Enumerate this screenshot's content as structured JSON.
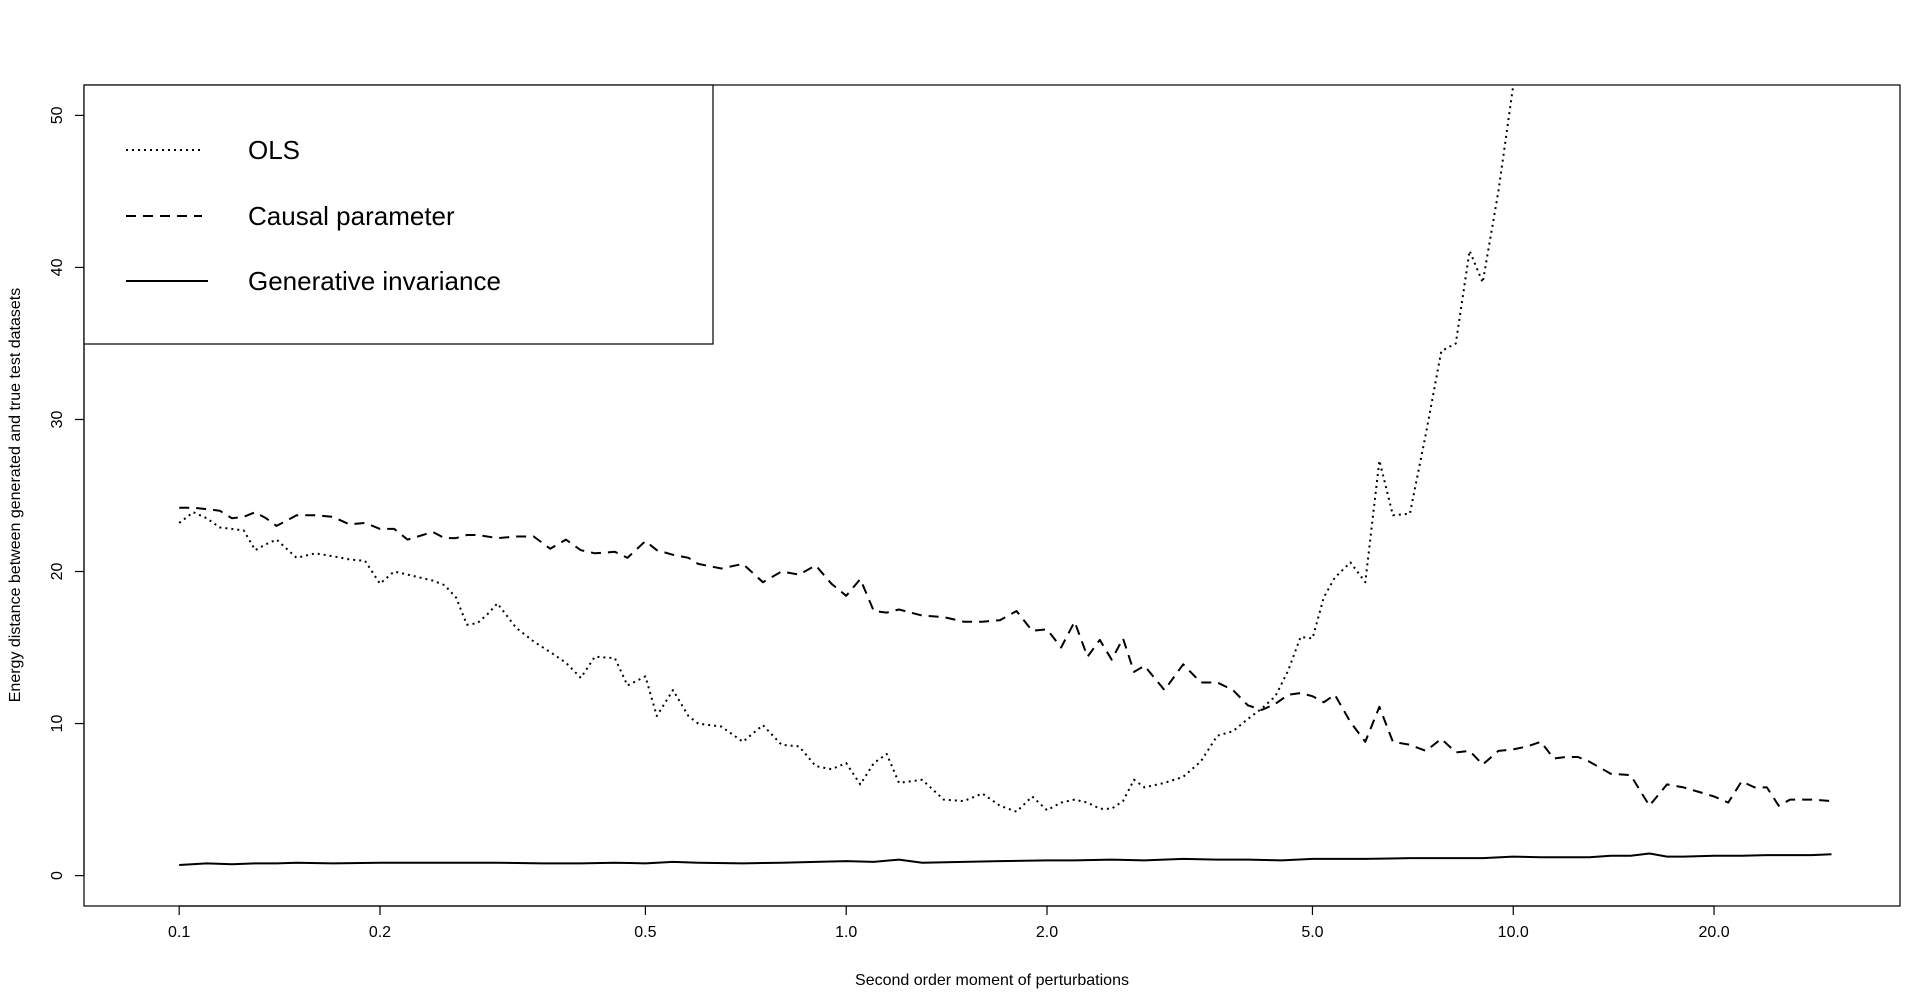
{
  "chart_data": {
    "type": "line",
    "title": "",
    "xlabel": "Second order moment of perturbations",
    "ylabel": "Energy distance between generated and true test datasets",
    "x_scale": "log",
    "xlim": [
      0.072,
      38
    ],
    "ylim": [
      -2,
      52
    ],
    "x_ticks": [
      0.1,
      0.2,
      0.5,
      1.0,
      2.0,
      5.0,
      10.0,
      20.0
    ],
    "x_tick_labels": [
      "0.1",
      "0.2",
      "0.5",
      "1.0",
      "2.0",
      "5.0",
      "10.0",
      "20.0"
    ],
    "y_ticks": [
      0,
      10,
      20,
      30,
      40,
      50
    ],
    "y_tick_labels": [
      "0",
      "10",
      "20",
      "30",
      "40",
      "50"
    ],
    "grid": false,
    "legend_position": "top-left",
    "legend": [
      {
        "label": "OLS",
        "style": "dotted"
      },
      {
        "label": "Causal parameter",
        "style": "dashed"
      },
      {
        "label": "Generative invariance",
        "style": "solid"
      }
    ],
    "series": [
      {
        "name": "OLS",
        "style": "dotted",
        "x": [
          0.1,
          0.105,
          0.11,
          0.115,
          0.12,
          0.125,
          0.13,
          0.135,
          0.14,
          0.15,
          0.16,
          0.17,
          0.18,
          0.19,
          0.2,
          0.21,
          0.22,
          0.24,
          0.25,
          0.26,
          0.27,
          0.28,
          0.29,
          0.3,
          0.32,
          0.34,
          0.36,
          0.38,
          0.4,
          0.42,
          0.45,
          0.47,
          0.5,
          0.52,
          0.55,
          0.58,
          0.6,
          0.65,
          0.7,
          0.75,
          0.8,
          0.85,
          0.9,
          0.95,
          1.0,
          1.05,
          1.1,
          1.15,
          1.2,
          1.3,
          1.4,
          1.5,
          1.6,
          1.7,
          1.8,
          1.9,
          2.0,
          2.1,
          2.2,
          2.3,
          2.4,
          2.5,
          2.6,
          2.7,
          2.8,
          3.0,
          3.2,
          3.4,
          3.6,
          3.8,
          4.0,
          4.2,
          4.4,
          4.6,
          4.8,
          5.0,
          5.2,
          5.4,
          5.7,
          6.0,
          6.3,
          6.6,
          7.0,
          7.4,
          7.8,
          8.2,
          8.6,
          9.0,
          9.5,
          10.0,
          10.4
        ],
        "values": [
          23.2,
          23.9,
          23.5,
          22.9,
          22.8,
          22.7,
          21.4,
          21.8,
          22.1,
          20.9,
          21.2,
          21.0,
          20.8,
          20.7,
          19.2,
          20.0,
          19.8,
          19.4,
          19.1,
          18.3,
          16.5,
          16.6,
          17.2,
          17.9,
          16.3,
          15.4,
          14.7,
          14.0,
          13.0,
          14.4,
          14.3,
          12.5,
          13.1,
          10.5,
          12.2,
          10.5,
          10.0,
          9.8,
          8.8,
          9.9,
          8.6,
          8.5,
          7.2,
          7.0,
          7.4,
          6.0,
          7.4,
          8.0,
          6.1,
          6.3,
          5.0,
          4.9,
          5.4,
          4.6,
          4.2,
          5.2,
          4.3,
          4.8,
          5.0,
          4.8,
          4.4,
          4.4,
          4.9,
          6.3,
          5.8,
          6.1,
          6.5,
          7.5,
          9.2,
          9.5,
          10.3,
          11.0,
          11.8,
          13.5,
          15.7,
          15.6,
          18.3,
          19.6,
          20.6,
          19.3,
          27.3,
          23.7,
          23.8,
          29.1,
          34.5,
          35.0,
          41.1,
          39.0,
          45.0,
          52.0,
          53.0
        ]
      },
      {
        "name": "Causal parameter",
        "style": "dashed",
        "x": [
          0.1,
          0.105,
          0.11,
          0.115,
          0.12,
          0.125,
          0.13,
          0.135,
          0.14,
          0.15,
          0.16,
          0.17,
          0.18,
          0.19,
          0.2,
          0.21,
          0.22,
          0.24,
          0.25,
          0.26,
          0.27,
          0.28,
          0.3,
          0.32,
          0.34,
          0.36,
          0.38,
          0.4,
          0.42,
          0.45,
          0.47,
          0.5,
          0.52,
          0.55,
          0.58,
          0.6,
          0.65,
          0.7,
          0.75,
          0.8,
          0.85,
          0.9,
          0.95,
          1.0,
          1.05,
          1.1,
          1.15,
          1.2,
          1.3,
          1.4,
          1.5,
          1.6,
          1.7,
          1.8,
          1.9,
          2.0,
          2.1,
          2.2,
          2.3,
          2.4,
          2.5,
          2.6,
          2.7,
          2.8,
          3.0,
          3.2,
          3.4,
          3.6,
          3.8,
          4.0,
          4.2,
          4.4,
          4.6,
          4.8,
          5.0,
          5.2,
          5.4,
          5.7,
          6.0,
          6.3,
          6.6,
          7.0,
          7.4,
          7.8,
          8.2,
          8.6,
          9.0,
          9.5,
          10.0,
          10.5,
          11.0,
          11.5,
          12.0,
          12.5,
          13.0,
          14.0,
          15.0,
          16.0,
          17.0,
          18.0,
          19.0,
          20.0,
          21.0,
          22.0,
          23.0,
          24.0,
          25.0,
          26.0,
          28.0,
          30.0
        ],
        "values": [
          24.2,
          24.2,
          24.1,
          24.0,
          23.5,
          23.6,
          23.9,
          23.5,
          23.0,
          23.7,
          23.7,
          23.6,
          23.1,
          23.2,
          22.8,
          22.8,
          22.1,
          22.6,
          22.2,
          22.2,
          22.4,
          22.4,
          22.2,
          22.3,
          22.3,
          21.5,
          22.1,
          21.4,
          21.2,
          21.3,
          20.9,
          22.0,
          21.4,
          21.1,
          20.9,
          20.5,
          20.2,
          20.5,
          19.3,
          20.0,
          19.8,
          20.4,
          19.2,
          18.4,
          19.5,
          17.4,
          17.3,
          17.5,
          17.1,
          17.0,
          16.7,
          16.7,
          16.8,
          17.4,
          16.1,
          16.2,
          15.0,
          16.7,
          14.4,
          15.5,
          14.2,
          15.6,
          13.4,
          13.8,
          12.2,
          13.9,
          12.7,
          12.7,
          12.2,
          11.2,
          10.9,
          11.3,
          11.9,
          12.0,
          11.8,
          11.4,
          11.9,
          10.1,
          8.8,
          11.1,
          8.8,
          8.6,
          8.2,
          9.0,
          8.1,
          8.2,
          7.3,
          8.2,
          8.3,
          8.5,
          8.8,
          7.7,
          7.8,
          7.8,
          7.5,
          6.7,
          6.6,
          4.6,
          6.0,
          5.8,
          5.5,
          5.2,
          4.8,
          6.2,
          5.8,
          5.8,
          4.6,
          5.0,
          5.0,
          4.9
        ]
      },
      {
        "name": "Generative invariance",
        "style": "solid",
        "x": [
          0.1,
          0.11,
          0.12,
          0.13,
          0.14,
          0.15,
          0.17,
          0.2,
          0.25,
          0.3,
          0.35,
          0.4,
          0.45,
          0.5,
          0.55,
          0.6,
          0.7,
          0.8,
          0.9,
          1.0,
          1.1,
          1.2,
          1.3,
          1.5,
          1.7,
          2.0,
          2.2,
          2.5,
          2.8,
          3.2,
          3.6,
          4.0,
          4.5,
          5.0,
          5.5,
          6.0,
          7.0,
          8.0,
          9.0,
          10.0,
          11.0,
          12.0,
          13.0,
          14.0,
          15.0,
          16.0,
          17.0,
          18.0,
          20.0,
          22.0,
          24.0,
          26.0,
          28.0,
          30.0
        ],
        "values": [
          0.7,
          0.8,
          0.75,
          0.8,
          0.8,
          0.85,
          0.8,
          0.85,
          0.85,
          0.85,
          0.8,
          0.8,
          0.85,
          0.8,
          0.9,
          0.85,
          0.8,
          0.85,
          0.9,
          0.95,
          0.9,
          1.05,
          0.85,
          0.9,
          0.95,
          1.0,
          1.0,
          1.05,
          1.0,
          1.1,
          1.05,
          1.05,
          1.0,
          1.1,
          1.1,
          1.1,
          1.15,
          1.15,
          1.15,
          1.25,
          1.2,
          1.2,
          1.2,
          1.3,
          1.3,
          1.45,
          1.25,
          1.25,
          1.3,
          1.3,
          1.35,
          1.35,
          1.35,
          1.4
        ]
      }
    ]
  }
}
